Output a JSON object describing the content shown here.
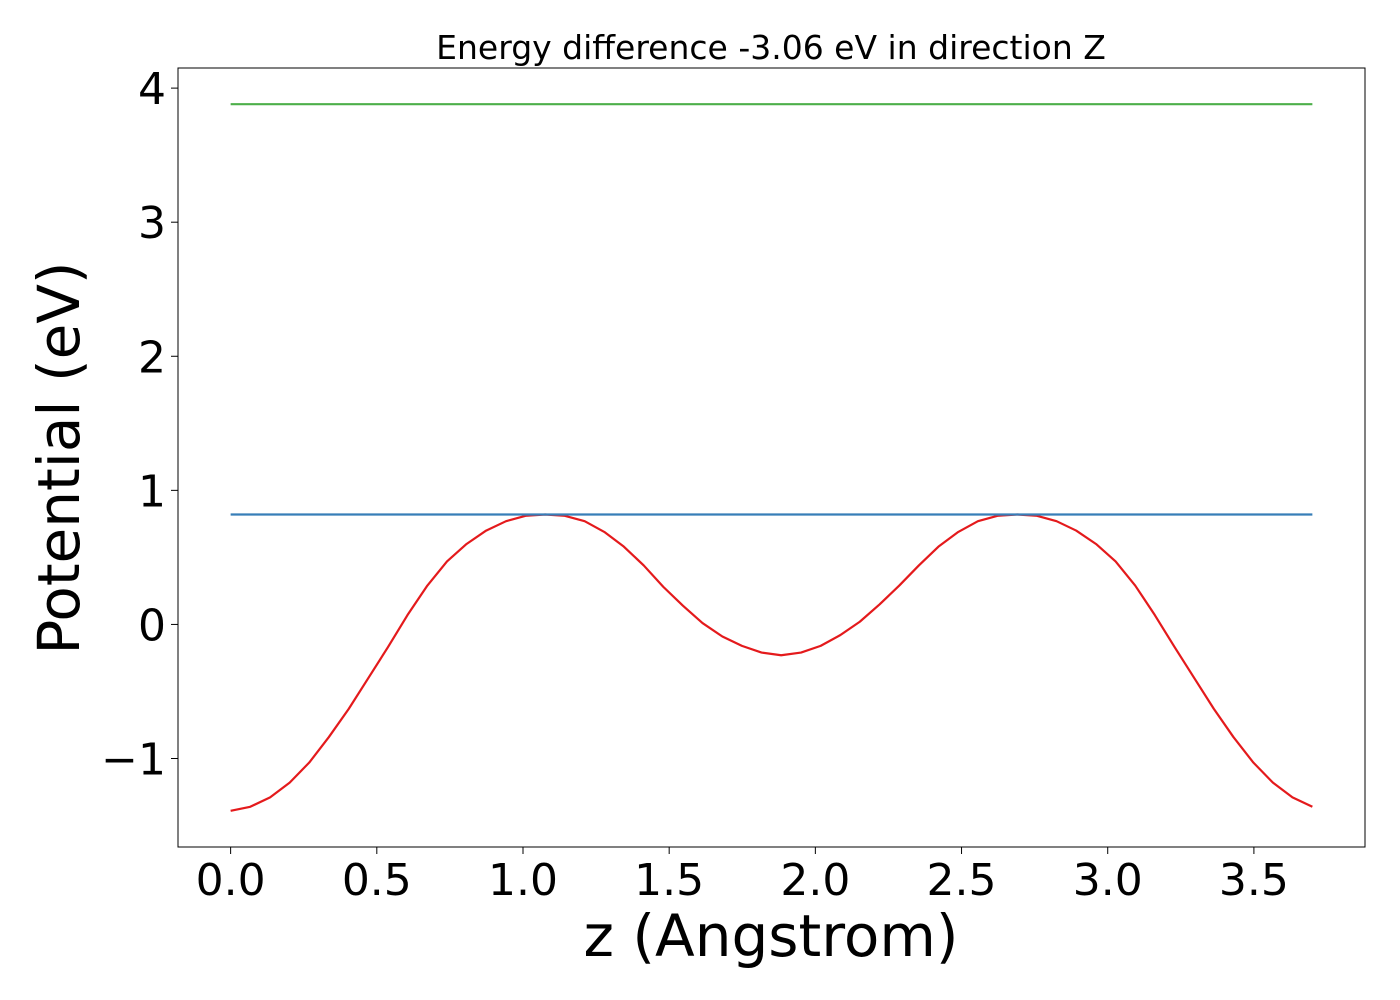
{
  "chart_data": {
    "type": "line",
    "title": "Energy difference -3.06 eV in direction Z",
    "xlabel": "z (Angstrom)",
    "ylabel": "Potential (eV)",
    "xlim": [
      -0.18,
      3.88
    ],
    "ylim": [
      -1.66,
      4.15
    ],
    "grid": false,
    "xticks": [
      0.0,
      0.5,
      1.0,
      1.5,
      2.0,
      2.5,
      3.0,
      3.5
    ],
    "xtick_labels": [
      "0.0",
      "0.5",
      "1.0",
      "1.5",
      "2.0",
      "2.5",
      "3.0",
      "3.5"
    ],
    "yticks": [
      -1,
      0,
      1,
      2,
      3,
      4
    ],
    "ytick_labels": [
      "−1",
      "0",
      "1",
      "2",
      "3",
      "4"
    ],
    "series": [
      {
        "color": "#e41a1c",
        "x": [
          0.0,
          0.067,
          0.135,
          0.202,
          0.269,
          0.336,
          0.404,
          0.471,
          0.538,
          0.605,
          0.673,
          0.74,
          0.807,
          0.874,
          0.942,
          1.009,
          1.076,
          1.143,
          1.211,
          1.278,
          1.345,
          1.413,
          1.48,
          1.547,
          1.614,
          1.682,
          1.749,
          1.816,
          1.883,
          1.951,
          2.018,
          2.085,
          2.152,
          2.22,
          2.287,
          2.354,
          2.421,
          2.489,
          2.556,
          2.623,
          2.691,
          2.758,
          2.825,
          2.892,
          2.96,
          3.027,
          3.094,
          3.161,
          3.229,
          3.296,
          3.363,
          3.43,
          3.498,
          3.565,
          3.632,
          3.7
        ],
        "y": [
          -1.39,
          -1.36,
          -1.29,
          -1.18,
          -1.03,
          -0.84,
          -0.63,
          -0.4,
          -0.17,
          0.07,
          0.29,
          0.47,
          0.6,
          0.7,
          0.77,
          0.81,
          0.82,
          0.81,
          0.77,
          0.69,
          0.58,
          0.44,
          0.28,
          0.14,
          0.01,
          -0.09,
          -0.16,
          -0.21,
          -0.23,
          -0.21,
          -0.16,
          -0.08,
          0.02,
          0.15,
          0.29,
          0.44,
          0.58,
          0.69,
          0.77,
          0.81,
          0.82,
          0.81,
          0.77,
          0.7,
          0.6,
          0.47,
          0.29,
          0.07,
          -0.17,
          -0.4,
          -0.63,
          -0.84,
          -1.03,
          -1.18,
          -1.29,
          -1.36
        ]
      },
      {
        "color": "#377eb8",
        "x": [
          0.0,
          3.7
        ],
        "y": [
          0.82,
          0.82
        ]
      },
      {
        "color": "#4daf4a",
        "x": [
          0.0,
          3.7
        ],
        "y": [
          3.88,
          3.88
        ]
      }
    ]
  }
}
